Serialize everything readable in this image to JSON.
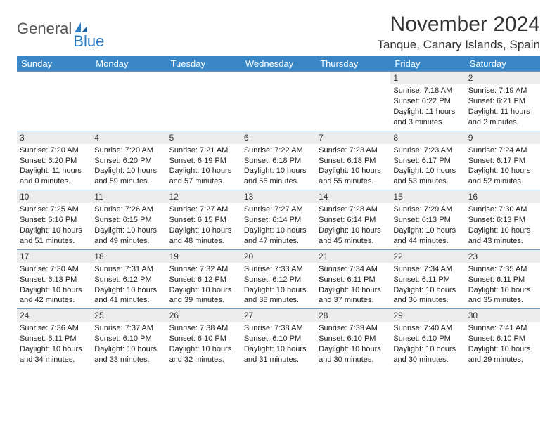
{
  "logo": {
    "general": "General",
    "blue": "Blue"
  },
  "title": "November 2024",
  "location": "Tanque, Canary Islands, Spain",
  "weekdays": [
    "Sunday",
    "Monday",
    "Tuesday",
    "Wednesday",
    "Thursday",
    "Friday",
    "Saturday"
  ],
  "colors": {
    "header_bg": "#3a87c8",
    "header_text": "#ffffff",
    "daynum_bg": "#ececec",
    "divider": "#6a97c0",
    "logo_blue": "#2d7bbf",
    "logo_gray": "#555555",
    "text": "#222222"
  },
  "weeks": [
    [
      {
        "num": "",
        "sunrise": "",
        "sunset": "",
        "daylight": "",
        "empty": true
      },
      {
        "num": "",
        "sunrise": "",
        "sunset": "",
        "daylight": "",
        "empty": true
      },
      {
        "num": "",
        "sunrise": "",
        "sunset": "",
        "daylight": "",
        "empty": true
      },
      {
        "num": "",
        "sunrise": "",
        "sunset": "",
        "daylight": "",
        "empty": true
      },
      {
        "num": "",
        "sunrise": "",
        "sunset": "",
        "daylight": "",
        "empty": true
      },
      {
        "num": "1",
        "sunrise": "Sunrise: 7:18 AM",
        "sunset": "Sunset: 6:22 PM",
        "daylight": "Daylight: 11 hours and 3 minutes."
      },
      {
        "num": "2",
        "sunrise": "Sunrise: 7:19 AM",
        "sunset": "Sunset: 6:21 PM",
        "daylight": "Daylight: 11 hours and 2 minutes."
      }
    ],
    [
      {
        "num": "3",
        "sunrise": "Sunrise: 7:20 AM",
        "sunset": "Sunset: 6:20 PM",
        "daylight": "Daylight: 11 hours and 0 minutes."
      },
      {
        "num": "4",
        "sunrise": "Sunrise: 7:20 AM",
        "sunset": "Sunset: 6:20 PM",
        "daylight": "Daylight: 10 hours and 59 minutes."
      },
      {
        "num": "5",
        "sunrise": "Sunrise: 7:21 AM",
        "sunset": "Sunset: 6:19 PM",
        "daylight": "Daylight: 10 hours and 57 minutes."
      },
      {
        "num": "6",
        "sunrise": "Sunrise: 7:22 AM",
        "sunset": "Sunset: 6:18 PM",
        "daylight": "Daylight: 10 hours and 56 minutes."
      },
      {
        "num": "7",
        "sunrise": "Sunrise: 7:23 AM",
        "sunset": "Sunset: 6:18 PM",
        "daylight": "Daylight: 10 hours and 55 minutes."
      },
      {
        "num": "8",
        "sunrise": "Sunrise: 7:23 AM",
        "sunset": "Sunset: 6:17 PM",
        "daylight": "Daylight: 10 hours and 53 minutes."
      },
      {
        "num": "9",
        "sunrise": "Sunrise: 7:24 AM",
        "sunset": "Sunset: 6:17 PM",
        "daylight": "Daylight: 10 hours and 52 minutes."
      }
    ],
    [
      {
        "num": "10",
        "sunrise": "Sunrise: 7:25 AM",
        "sunset": "Sunset: 6:16 PM",
        "daylight": "Daylight: 10 hours and 51 minutes."
      },
      {
        "num": "11",
        "sunrise": "Sunrise: 7:26 AM",
        "sunset": "Sunset: 6:15 PM",
        "daylight": "Daylight: 10 hours and 49 minutes."
      },
      {
        "num": "12",
        "sunrise": "Sunrise: 7:27 AM",
        "sunset": "Sunset: 6:15 PM",
        "daylight": "Daylight: 10 hours and 48 minutes."
      },
      {
        "num": "13",
        "sunrise": "Sunrise: 7:27 AM",
        "sunset": "Sunset: 6:14 PM",
        "daylight": "Daylight: 10 hours and 47 minutes."
      },
      {
        "num": "14",
        "sunrise": "Sunrise: 7:28 AM",
        "sunset": "Sunset: 6:14 PM",
        "daylight": "Daylight: 10 hours and 45 minutes."
      },
      {
        "num": "15",
        "sunrise": "Sunrise: 7:29 AM",
        "sunset": "Sunset: 6:13 PM",
        "daylight": "Daylight: 10 hours and 44 minutes."
      },
      {
        "num": "16",
        "sunrise": "Sunrise: 7:30 AM",
        "sunset": "Sunset: 6:13 PM",
        "daylight": "Daylight: 10 hours and 43 minutes."
      }
    ],
    [
      {
        "num": "17",
        "sunrise": "Sunrise: 7:30 AM",
        "sunset": "Sunset: 6:13 PM",
        "daylight": "Daylight: 10 hours and 42 minutes."
      },
      {
        "num": "18",
        "sunrise": "Sunrise: 7:31 AM",
        "sunset": "Sunset: 6:12 PM",
        "daylight": "Daylight: 10 hours and 41 minutes."
      },
      {
        "num": "19",
        "sunrise": "Sunrise: 7:32 AM",
        "sunset": "Sunset: 6:12 PM",
        "daylight": "Daylight: 10 hours and 39 minutes."
      },
      {
        "num": "20",
        "sunrise": "Sunrise: 7:33 AM",
        "sunset": "Sunset: 6:12 PM",
        "daylight": "Daylight: 10 hours and 38 minutes."
      },
      {
        "num": "21",
        "sunrise": "Sunrise: 7:34 AM",
        "sunset": "Sunset: 6:11 PM",
        "daylight": "Daylight: 10 hours and 37 minutes."
      },
      {
        "num": "22",
        "sunrise": "Sunrise: 7:34 AM",
        "sunset": "Sunset: 6:11 PM",
        "daylight": "Daylight: 10 hours and 36 minutes."
      },
      {
        "num": "23",
        "sunrise": "Sunrise: 7:35 AM",
        "sunset": "Sunset: 6:11 PM",
        "daylight": "Daylight: 10 hours and 35 minutes."
      }
    ],
    [
      {
        "num": "24",
        "sunrise": "Sunrise: 7:36 AM",
        "sunset": "Sunset: 6:11 PM",
        "daylight": "Daylight: 10 hours and 34 minutes."
      },
      {
        "num": "25",
        "sunrise": "Sunrise: 7:37 AM",
        "sunset": "Sunset: 6:10 PM",
        "daylight": "Daylight: 10 hours and 33 minutes."
      },
      {
        "num": "26",
        "sunrise": "Sunrise: 7:38 AM",
        "sunset": "Sunset: 6:10 PM",
        "daylight": "Daylight: 10 hours and 32 minutes."
      },
      {
        "num": "27",
        "sunrise": "Sunrise: 7:38 AM",
        "sunset": "Sunset: 6:10 PM",
        "daylight": "Daylight: 10 hours and 31 minutes."
      },
      {
        "num": "28",
        "sunrise": "Sunrise: 7:39 AM",
        "sunset": "Sunset: 6:10 PM",
        "daylight": "Daylight: 10 hours and 30 minutes."
      },
      {
        "num": "29",
        "sunrise": "Sunrise: 7:40 AM",
        "sunset": "Sunset: 6:10 PM",
        "daylight": "Daylight: 10 hours and 30 minutes."
      },
      {
        "num": "30",
        "sunrise": "Sunrise: 7:41 AM",
        "sunset": "Sunset: 6:10 PM",
        "daylight": "Daylight: 10 hours and 29 minutes."
      }
    ]
  ]
}
